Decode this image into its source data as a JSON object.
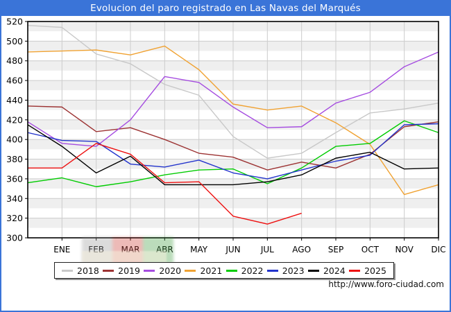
{
  "title": "Evolucion del paro registrado en Las Navas del Marqués",
  "footer": {
    "url_label": "http://www.foro-ciudad.com"
  },
  "colors": {
    "frame_blue": "#3a74d8",
    "grid": "#cccccc",
    "stripe": "#efefef",
    "plot_border": "#000000",
    "watermark_bands": [
      "#9a9a9a",
      "#cc3b33",
      "#3f9e3f"
    ]
  },
  "chart_data": {
    "type": "line",
    "title": "Evolucion del paro registrado en Las Navas del Marqués",
    "xlabel": "",
    "ylabel": "",
    "grid": true,
    "legend_position": "bottom",
    "x_categories": [
      "ENE",
      "FEB",
      "MAR",
      "ABR",
      "MAY",
      "JUN",
      "JUL",
      "AGO",
      "SEP",
      "OCT",
      "NOV",
      "DIC"
    ],
    "y_axis": {
      "min": 300,
      "max": 520,
      "step": 20,
      "ticks": [
        520,
        500,
        480,
        460,
        440,
        420,
        400,
        380,
        360,
        340,
        320,
        300
      ]
    },
    "series_note": "start = value drawn on the left axis (previous year's December); values = ENE..DIC",
    "series": [
      {
        "name": "2018",
        "color": "#c8c8c8",
        "start": 516,
        "values": [
          514,
          487,
          477,
          456,
          445,
          403,
          381,
          386,
          407,
          427,
          431,
          437
        ]
      },
      {
        "name": "2019",
        "color": "#9c3232",
        "start": 434,
        "values": [
          433,
          408,
          412,
          400,
          386,
          382,
          369,
          377,
          371,
          385,
          413,
          418
        ]
      },
      {
        "name": "2020",
        "color": "#a54ce0",
        "start": 418,
        "values": [
          396,
          393,
          420,
          464,
          458,
          433,
          412,
          413,
          437,
          448,
          474,
          489
        ]
      },
      {
        "name": "2021",
        "color": "#f0a232",
        "start": 489,
        "values": [
          490,
          491,
          486,
          495,
          471,
          436,
          430,
          434,
          417,
          395,
          344,
          354
        ]
      },
      {
        "name": "2022",
        "color": "#00cc00",
        "start": 356,
        "values": [
          361,
          352,
          357,
          364,
          369,
          370,
          355,
          371,
          393,
          396,
          419,
          407
        ]
      },
      {
        "name": "2023",
        "color": "#2233cc",
        "start": 407,
        "values": [
          399,
          398,
          375,
          372,
          379,
          366,
          360,
          369,
          378,
          384,
          415,
          416
        ]
      },
      {
        "name": "2024",
        "color": "#000000",
        "start": 415,
        "values": [
          393,
          366,
          383,
          354,
          354,
          354,
          357,
          364,
          381,
          387,
          370,
          371
        ]
      },
      {
        "name": "2025",
        "color": "#ee1111",
        "start": 371,
        "values": [
          371,
          396,
          385,
          356,
          357,
          322,
          314,
          325,
          null,
          null,
          null,
          null
        ]
      }
    ]
  }
}
